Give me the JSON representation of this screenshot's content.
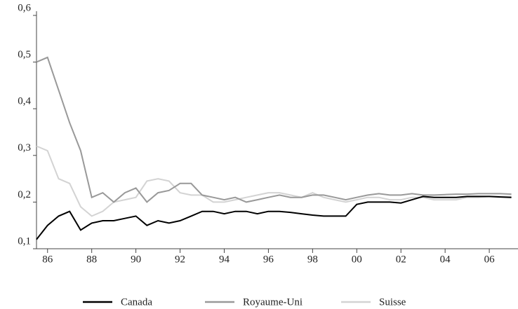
{
  "chart_data": {
    "type": "line",
    "x": [
      1985.5,
      1986,
      1986.5,
      1987,
      1987.5,
      1988,
      1988.5,
      1989,
      1989.5,
      1990,
      1990.5,
      1991,
      1991.5,
      1992,
      1992.5,
      1993,
      1993.5,
      1994,
      1994.5,
      1995,
      1995.5,
      1996,
      1996.5,
      1997,
      1997.5,
      1998,
      1998.5,
      1999,
      1999.5,
      2000,
      2000.5,
      2001,
      2001.5,
      2002,
      2002.5,
      2003,
      2003.5,
      2004,
      2004.5,
      2005,
      2005.5,
      2006,
      2006.5,
      2007
    ],
    "series": [
      {
        "name": "Canada",
        "color": "#000000",
        "values": [
          0.12,
          0.15,
          0.17,
          0.18,
          0.14,
          0.155,
          0.16,
          0.16,
          0.165,
          0.17,
          0.15,
          0.16,
          0.155,
          0.16,
          0.17,
          0.18,
          0.18,
          0.175,
          0.18,
          0.18,
          0.175,
          0.18,
          0.18,
          0.178,
          0.175,
          0.172,
          0.17,
          0.17,
          0.17,
          0.195,
          0.2,
          0.2,
          0.2,
          0.198,
          0.205,
          0.212,
          0.21,
          0.21,
          0.21,
          0.212,
          0.212,
          0.212,
          0.211,
          0.21
        ]
      },
      {
        "name": "Royaume-Uni",
        "color": "#999999",
        "values": [
          0.5,
          0.51,
          0.44,
          0.37,
          0.31,
          0.21,
          0.22,
          0.2,
          0.22,
          0.23,
          0.2,
          0.22,
          0.225,
          0.24,
          0.24,
          0.215,
          0.21,
          0.205,
          0.21,
          0.2,
          0.205,
          0.21,
          0.215,
          0.21,
          0.21,
          0.215,
          0.215,
          0.21,
          0.205,
          0.21,
          0.215,
          0.218,
          0.215,
          0.215,
          0.218,
          0.215,
          0.215,
          0.216,
          0.217,
          0.217,
          0.218,
          0.218,
          0.218,
          0.217
        ]
      },
      {
        "name": "Suisse",
        "color": "#d3d3d3",
        "values": [
          0.32,
          0.31,
          0.25,
          0.24,
          0.19,
          0.17,
          0.18,
          0.2,
          0.205,
          0.21,
          0.245,
          0.25,
          0.245,
          0.22,
          0.215,
          0.215,
          0.2,
          0.2,
          0.205,
          0.21,
          0.215,
          0.22,
          0.22,
          0.215,
          0.21,
          0.22,
          0.21,
          0.205,
          0.2,
          0.205,
          0.21,
          0.21,
          0.205,
          0.205,
          0.21,
          0.21,
          0.205,
          0.205,
          0.205,
          0.21,
          0.21,
          0.212,
          0.212,
          0.212
        ]
      }
    ],
    "xlim": [
      1985.5,
      2007.3
    ],
    "xticks": [
      {
        "value": 1986,
        "label": "86"
      },
      {
        "value": 1988,
        "label": "88"
      },
      {
        "value": 1990,
        "label": "90"
      },
      {
        "value": 1992,
        "label": "92"
      },
      {
        "value": 1994,
        "label": "94"
      },
      {
        "value": 1996,
        "label": "96"
      },
      {
        "value": 1998,
        "label": "98"
      },
      {
        "value": 2000,
        "label": "00"
      },
      {
        "value": 2002,
        "label": "02"
      },
      {
        "value": 2004,
        "label": "04"
      },
      {
        "value": 2006,
        "label": "06"
      }
    ],
    "ylim": [
      0.1,
      0.6
    ],
    "yticks": [
      {
        "value": 0.1,
        "label": "0,1"
      },
      {
        "value": 0.2,
        "label": "0,2"
      },
      {
        "value": 0.3,
        "label": "0,3"
      },
      {
        "value": 0.4,
        "label": "0,4"
      },
      {
        "value": 0.5,
        "label": "0,5"
      },
      {
        "value": 0.6,
        "label": "0,6"
      }
    ],
    "grid": false,
    "legend": "bottom"
  }
}
